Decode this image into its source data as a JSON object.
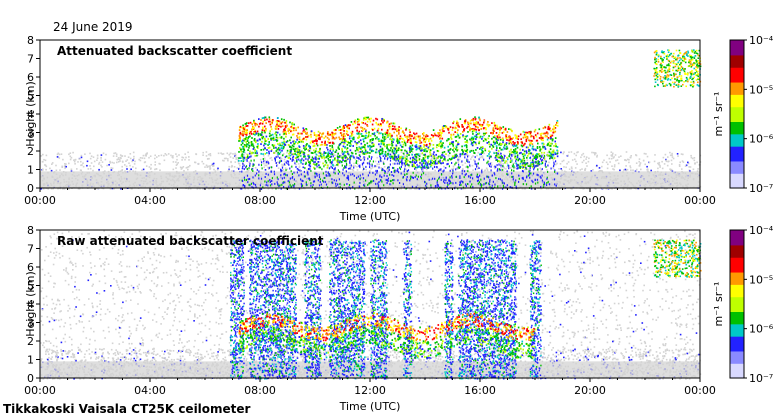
{
  "header": {
    "date": "24 June 2019"
  },
  "footer": {
    "label": "Tikkakoski Vaisala CT25K ceilometer"
  },
  "colors": {
    "background_noise": "#d3d3d3",
    "colormap": [
      "#d9d9ff",
      "#8a8aff",
      "#2222ff",
      "#00c8c8",
      "#00c000",
      "#bfff00",
      "#ffff00",
      "#ff9900",
      "#ff0000",
      "#a00000",
      "#800080"
    ]
  },
  "chart_data": [
    {
      "type": "heatmap",
      "title": "Attenuated backscatter coefficient",
      "xlabel": "Time (UTC)",
      "ylabel": "Height (km)",
      "xlim": [
        0,
        24
      ],
      "ylim": [
        0,
        8
      ],
      "xticks": [
        "00:00",
        "04:00",
        "08:00",
        "12:00",
        "16:00",
        "20:00",
        "00:00"
      ],
      "yticks": [
        "0",
        "1",
        "2",
        "3",
        "4",
        "5",
        "6",
        "7",
        "8"
      ],
      "colorbar": {
        "label": "m⁻¹ sr⁻¹",
        "scale": "log",
        "range": [
          1e-07,
          0.0001
        ],
        "ticks": [
          "10⁻⁴",
          "10⁻⁵",
          "10⁻⁶",
          "10⁻⁷"
        ]
      },
      "features": {
        "noise_below_km": 2,
        "cloud_layer": {
          "start_h": 7.2,
          "end_h": 18.8,
          "base_km": 1.5,
          "top_km": 3.5
        },
        "high_cloud": {
          "start_h": 22.3,
          "end_h": 24,
          "base_km": 5.5,
          "top_km": 7.5
        }
      }
    },
    {
      "type": "heatmap",
      "title": "Raw attenuated backscatter coefficient",
      "xlabel": "Time (UTC)",
      "ylabel": "Height (km)",
      "xlim": [
        0,
        24
      ],
      "ylim": [
        0,
        8
      ],
      "xticks": [
        "00:00",
        "04:00",
        "08:00",
        "12:00",
        "16:00",
        "20:00",
        "00:00"
      ],
      "yticks": [
        "0",
        "1",
        "2",
        "3",
        "4",
        "5",
        "6",
        "7",
        "8"
      ],
      "colorbar": {
        "label": "m⁻¹ sr⁻¹",
        "scale": "log",
        "range": [
          1e-07,
          0.0001
        ],
        "ticks": [
          "10⁻⁴",
          "10⁻⁵",
          "10⁻⁶",
          "10⁻⁷"
        ]
      },
      "features": {
        "noise_below_km": 8,
        "precip_streaks": [
          [
            6.9,
            7.4
          ],
          [
            7.6,
            9.3
          ],
          [
            9.6,
            10.2
          ],
          [
            10.5,
            11.8
          ],
          [
            12.0,
            12.6
          ],
          [
            13.2,
            13.5
          ],
          [
            14.7,
            15.0
          ],
          [
            15.2,
            17.3
          ],
          [
            17.8,
            18.2
          ]
        ],
        "cloud_layer": {
          "start_h": 7.2,
          "end_h": 18.0,
          "base_km": 1.5,
          "top_km": 3.2
        },
        "high_cloud": {
          "start_h": 22.3,
          "end_h": 24,
          "base_km": 5.5,
          "top_km": 7.5
        }
      }
    }
  ]
}
